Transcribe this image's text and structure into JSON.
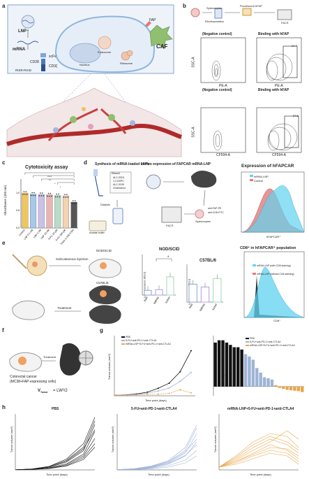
{
  "panel_labels": [
    "a",
    "b",
    "c",
    "d",
    "e",
    "f",
    "g",
    "h"
  ],
  "panel_a": {
    "lnp": "LNP",
    "mrna": "mRNA",
    "scfv": "scFv",
    "cd28": "CD28",
    "cd3z": "CD3ζ",
    "risr": "RISR-RIAD",
    "pka": "PKA",
    "caf": "CAF",
    "fap": "FAP",
    "cell": "Cell",
    "nucleus": "Nucleus",
    "endosome": "Endosome",
    "ribosome": "Ribosome"
  },
  "panel_b": {
    "splenocytes": "Splenocytes",
    "electroporation": "Electroporation",
    "fluorescent": "Fluorescent hFAP",
    "facs": "FACS",
    "neg_control": "(Negative control)",
    "binding": "Binding with hFAP",
    "ssc": "SSC-A",
    "pe": "PE-A",
    "cf594": "CF594-A",
    "gate1": "24.7",
    "gate2": "37.5"
  },
  "panel_c": {
    "title": "Cytotoxicity assay",
    "ylabel": "Absorbance (450 nm)",
    "sig": [
      "****",
      "**",
      "*",
      "*"
    ]
  },
  "panel_d": {
    "synthesis": "Synthesis of mRNA-loaded LNPs",
    "invivo": "In vivo expression of FAPCAR mRNA-LNP",
    "ethanol": "Ethanol",
    "lipids": [
      "ALC-0315",
      "1,2-DSPC",
      "ALC-0159",
      "Cholesterol"
    ],
    "dialysis": "Dialysis",
    "buffer": "Acetate buffer",
    "facs": "FACS",
    "splenocytes": "Splenocytes",
    "stain1": "anti-FAP-PE",
    "stain2": "anti-CD8-FITC",
    "expr_title": "Expression of hFAPCAR",
    "legend": [
      "mRNA-LNP",
      "Control"
    ],
    "xlabel": "hFAPCAR⁺"
  },
  "panel_e": {
    "sc": "Subcutaneous injection",
    "nod": "NOD/SCID",
    "c57": "C57BL/6",
    "treatment": "Treatment",
    "nod_title": "NOD/SCID",
    "c57_title": "C57BL/6",
    "ylabel": "Luminescence (RLU)",
    "cd8_title": "CD8⁺ in hFAPCAR⁺ population",
    "cd8_legend": [
      "mRNA-LNP (with CD8 staining)",
      "mRNA-LNP (without CD8 staining)"
    ],
    "cd8_xlabel": "CD8⁺",
    "sig": "*"
  },
  "panel_f": {
    "cancer": "Colorectal cancer",
    "model": "(MC38+FAP-expressing cells)",
    "treatment": "Treatment",
    "vtumor": "V",
    "vsub": "Tumor",
    "formula": "= LW²/2"
  },
  "panel_g": {
    "legend": [
      "PBS",
      "5-FU+anti-PD-1+anti-CTLA4",
      "mRNA-LNP+5-FU+anti-PD-1+anti-CTLA4"
    ],
    "ylabel": "Tumor volume (mm³)",
    "xlabel": "Time point (days)",
    "ylabel2": "Change in tumor volume (%)",
    "legend2": [
      "PBS",
      "5-FU+anti-PD-1+anti-CTLA4",
      "mRNA-LNP+5-FU+anti-PD-1+anti-CTLA4"
    ]
  },
  "panel_h": {
    "titles": [
      "PBS",
      "5-FU+anti-PD-1+anti-CTLA4",
      "mRNA-LNP+5-FU+anti-PD-1+anti-CTLA4"
    ],
    "ylabel": "Tumor volume (mm³)",
    "xlabel": "Time point (days)"
  },
  "colors": {
    "pbs": "#111111",
    "chemo": "#9fb4d6",
    "lnp": "#e9a64a",
    "cyan": "#5fd3f0",
    "salmon": "#e47a7a",
    "bar_light": "#c8d3ea"
  },
  "chart_data": [
    {
      "type": "bar",
      "id": "c",
      "title": "Cytotoxicity assay",
      "ylabel": "Absorbance (450 nm)",
      "categories": [
        "Control",
        "LNP 0.1 nM",
        "LNP 1 nM",
        "LNP 10 nM",
        "5-FU 10 µM",
        "5-FU 100 µM",
        "Triton X-100 0.5%"
      ],
      "values": [
        1.0,
        0.97,
        0.96,
        0.95,
        0.93,
        0.92,
        0.74
      ],
      "ylim": [
        0,
        1.4
      ],
      "colors": [
        "#f0c75e",
        "#a8c8e8",
        "#c9c1e6",
        "#e8b4b4",
        "#b9dcc8",
        "#f3d3b0",
        "#555555"
      ]
    },
    {
      "type": "bar",
      "id": "e-nod",
      "title": "NOD/SCID",
      "ylabel": "Luminescence (RLU)",
      "categories": [
        "liver",
        "kidney",
        "tumor"
      ],
      "values": [
        7,
        8,
        27
      ],
      "ylim": [
        0,
        60
      ]
    },
    {
      "type": "bar",
      "id": "e-c57",
      "title": "C57BL/6",
      "ylabel": "Luminescence (RLU)",
      "categories": [
        "liver",
        "kidney",
        "tumor"
      ],
      "values": [
        19,
        16,
        25
      ],
      "ylim": [
        0,
        40
      ]
    },
    {
      "type": "line",
      "id": "g",
      "xlabel": "Time point (days)",
      "ylabel": "Tumor volume (mm³)",
      "x": [
        0,
        2,
        4,
        6,
        8,
        10,
        12,
        14
      ],
      "series": [
        {
          "name": "PBS",
          "values": [
            20,
            30,
            60,
            120,
            250,
            420,
            800,
            1500
          ]
        },
        {
          "name": "5-FU+anti-PD-1+anti-CTLA4",
          "values": [
            20,
            25,
            45,
            90,
            160,
            260,
            480,
            780
          ]
        },
        {
          "name": "mRNA-LNP+5-FU+anti-PD-1+anti-CTLA4",
          "values": [
            20,
            20,
            30,
            50,
            50,
            80,
            200,
            100
          ]
        }
      ],
      "ylim": [
        0,
        2000
      ]
    },
    {
      "type": "bar",
      "id": "g-waterfall",
      "ylabel": "Change in tumor volume (%)",
      "groups": [
        {
          "name": "PBS",
          "values": [
            95,
            100,
            100,
            95,
            90,
            85,
            85,
            80
          ]
        },
        {
          "name": "5-FU+anti-PD-1+anti-CTLA4",
          "values": [
            70,
            65,
            58,
            40,
            30,
            20,
            18,
            15
          ]
        },
        {
          "name": "mRNA-LNP+5-FU+anti-PD-1+anti-CTLA4",
          "values": [
            3,
            -3,
            -5,
            -7,
            -8,
            -9,
            -10,
            -12
          ]
        }
      ],
      "ylim": [
        -20,
        110
      ]
    },
    {
      "type": "line",
      "id": "h-pbs",
      "title": "PBS",
      "xlabel": "Time point (days)",
      "ylabel": "Tumor volume (mm³)",
      "x": [
        0,
        3,
        6,
        9,
        12,
        14
      ],
      "series": [
        {
          "values": [
            10,
            40,
            120,
            350,
            900,
            2200
          ]
        },
        {
          "values": [
            10,
            50,
            150,
            450,
            1100,
            2600
          ]
        },
        {
          "values": [
            10,
            30,
            100,
            300,
            800,
            1800
          ]
        },
        {
          "values": [
            10,
            60,
            200,
            550,
            1300,
            2800
          ]
        },
        {
          "values": [
            10,
            35,
            90,
            250,
            700,
            1500
          ]
        },
        {
          "values": [
            10,
            45,
            170,
            500,
            1200,
            2300
          ]
        },
        {
          "values": [
            10,
            20,
            80,
            220,
            600,
            1300
          ]
        },
        {
          "values": [
            10,
            55,
            210,
            620,
            1500,
            3000
          ]
        }
      ],
      "ylim": [
        0,
        3200
      ]
    },
    {
      "type": "line",
      "id": "h-chemo",
      "title": "5-FU+anti-PD-1+anti-CTLA4",
      "xlabel": "Time point (days)",
      "ylabel": "Tumor volume (mm³)",
      "x": [
        0,
        3,
        6,
        9,
        12,
        14
      ],
      "series": [
        {
          "values": [
            10,
            30,
            100,
            250,
            600,
            1300
          ]
        },
        {
          "values": [
            10,
            25,
            80,
            200,
            500,
            1000
          ]
        },
        {
          "values": [
            10,
            40,
            120,
            300,
            700,
            1500
          ]
        },
        {
          "values": [
            10,
            20,
            60,
            150,
            350,
            700
          ]
        },
        {
          "values": [
            10,
            35,
            110,
            280,
            650,
            1100
          ]
        },
        {
          "values": [
            10,
            15,
            40,
            100,
            250,
            500
          ]
        },
        {
          "values": [
            10,
            30,
            90,
            230,
            520,
            900
          ]
        },
        {
          "values": [
            10,
            45,
            140,
            330,
            800,
            1600
          ]
        }
      ],
      "ylim": [
        0,
        2000
      ]
    },
    {
      "type": "line",
      "id": "h-lnp",
      "title": "mRNA-LNP+5-FU+anti-PD-1+anti-CTLA4",
      "xlabel": "Time point (days)",
      "ylabel": "Tumor volume (mm³)",
      "x": [
        0,
        3,
        6,
        9,
        12,
        14
      ],
      "series": [
        {
          "values": [
            10,
            40,
            80,
            110,
            90,
            60
          ]
        },
        {
          "values": [
            10,
            30,
            60,
            90,
            70,
            40
          ]
        },
        {
          "values": [
            10,
            50,
            100,
            130,
            120,
            80
          ]
        },
        {
          "values": [
            10,
            25,
            50,
            70,
            60,
            30
          ]
        },
        {
          "values": [
            10,
            45,
            90,
            120,
            100,
            70
          ]
        },
        {
          "values": [
            10,
            20,
            40,
            60,
            50,
            20
          ]
        },
        {
          "values": [
            10,
            35,
            70,
            100,
            140,
            110
          ]
        },
        {
          "values": [
            10,
            30,
            55,
            80,
            75,
            50
          ]
        }
      ],
      "ylim": [
        0,
        200
      ]
    }
  ]
}
